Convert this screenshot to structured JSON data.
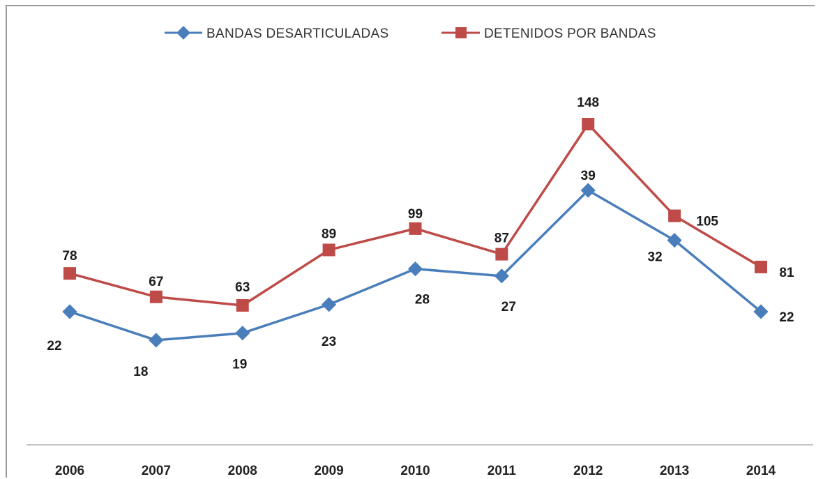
{
  "chart_data": {
    "type": "line",
    "categories": [
      "2006",
      "2007",
      "2008",
      "2009",
      "2010",
      "2011",
      "2012",
      "2013",
      "2014"
    ],
    "series": [
      {
        "name": "BANDAS DESARTICULADAS",
        "color": "#4a7ebb",
        "marker": "diamond",
        "values": [
          22,
          18,
          19,
          23,
          28,
          27,
          39,
          32,
          22
        ]
      },
      {
        "name": "DETENIDOS POR BANDAS",
        "color": "#be4b48",
        "marker": "square",
        "values": [
          78,
          67,
          63,
          89,
          99,
          87,
          148,
          105,
          81
        ]
      }
    ],
    "title": "",
    "xlabel": "",
    "ylabel": "",
    "legend": "top-center",
    "grid": false,
    "data_labels": true
  }
}
